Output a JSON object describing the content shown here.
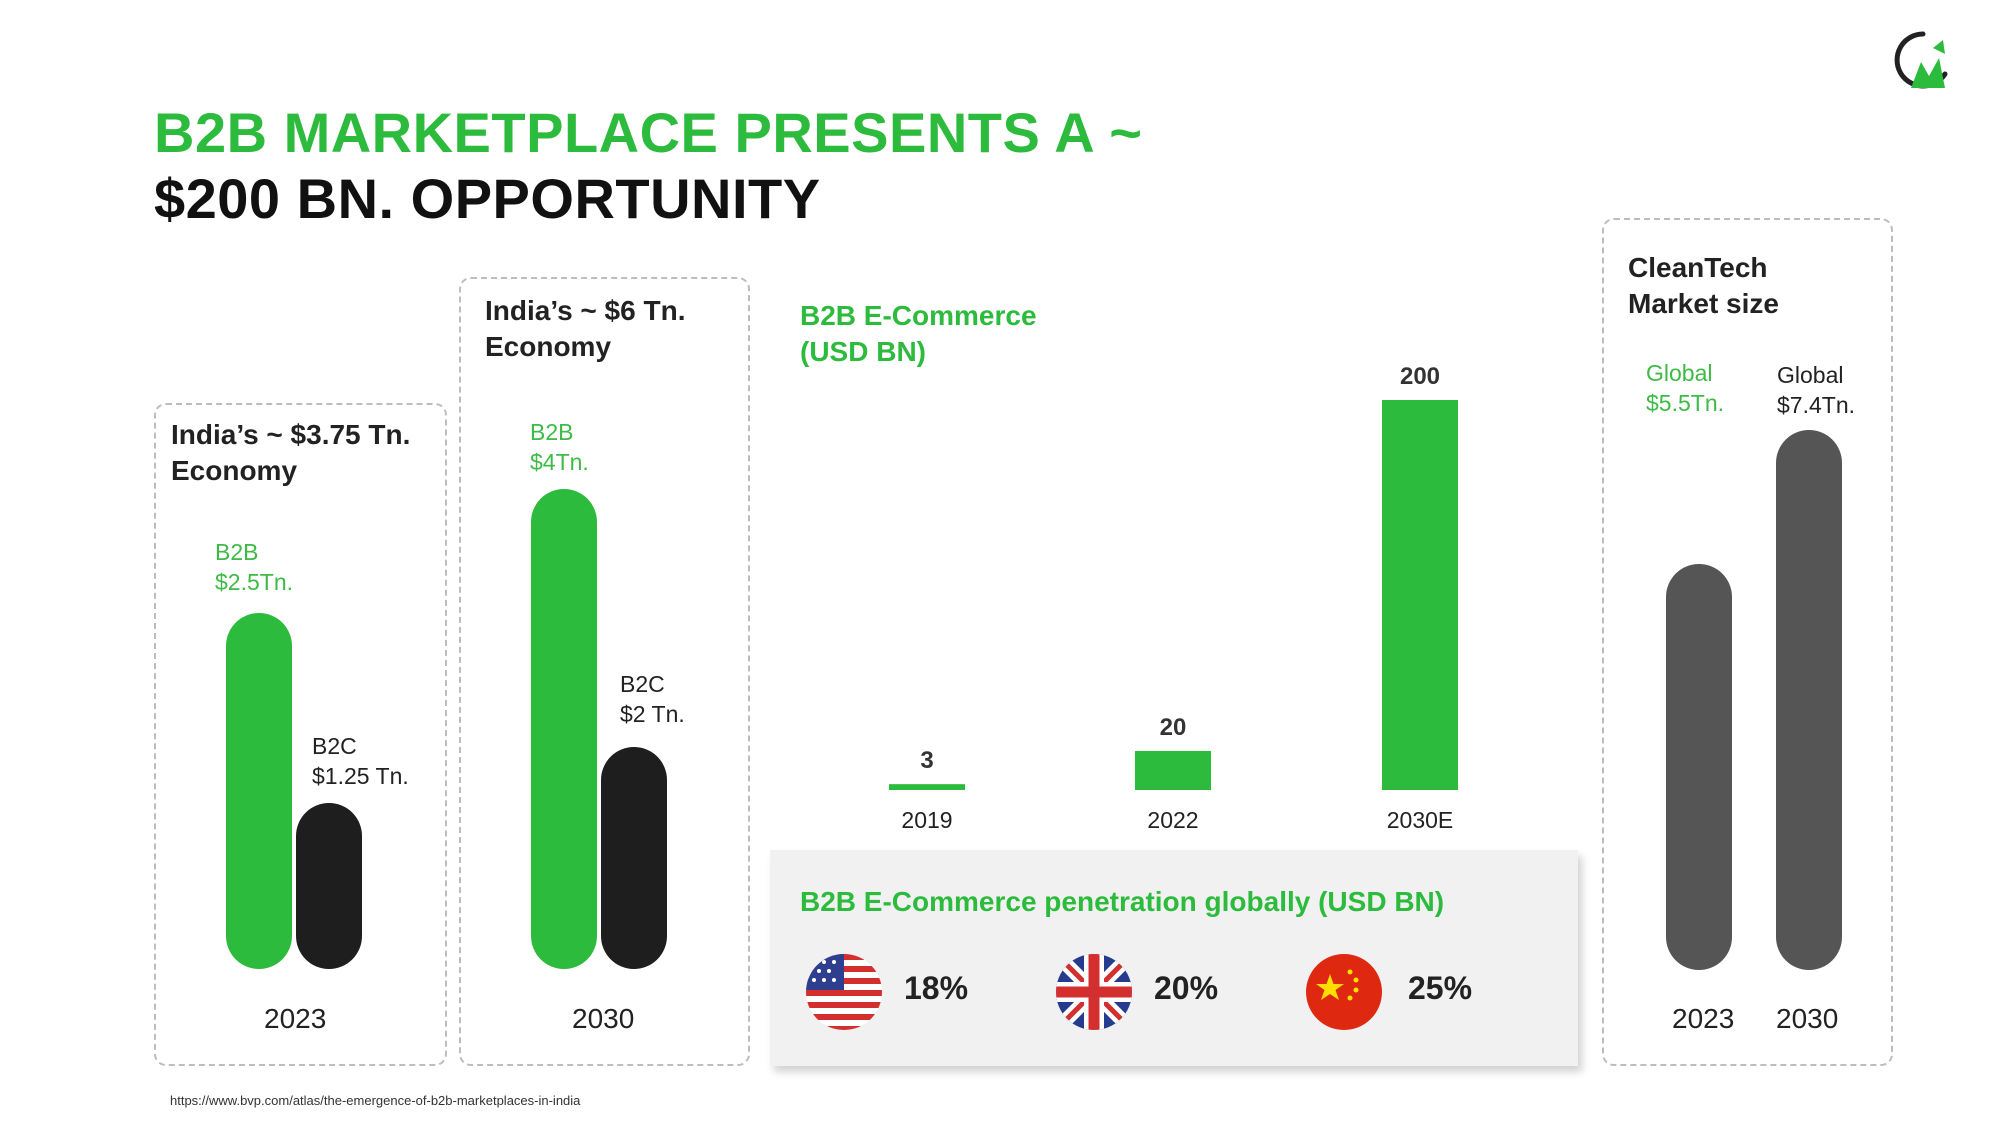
{
  "title": {
    "line1": "B2B MARKETPLACE PRESENTS A ~",
    "line2": "$200 BN. OPPORTUNITY"
  },
  "colors": {
    "brand_green": "#2dbb3d",
    "b2c_black": "#1e1e1e",
    "cleantech_gray": "#555555",
    "panel_bg": "#f1f1f1"
  },
  "india_2023": {
    "title": "India’s ~ $3.75 Tn. Economy",
    "b2b_label": "B2B",
    "b2b_value": "$2.5Tn.",
    "b2c_label": "B2C",
    "b2c_value": "$1.25 Tn.",
    "year": "2023"
  },
  "india_2030": {
    "title": "India’s ~ $6 Tn. Economy",
    "b2b_label": "B2B",
    "b2b_value": "$4Tn.",
    "b2c_label": "B2C",
    "b2c_value": "$2 Tn.",
    "year": "2030"
  },
  "chart_data": [
    {
      "type": "bar",
      "title": "India’s ~ $3.75 Tn. Economy",
      "categories": [
        "B2B",
        "B2C"
      ],
      "values": [
        2.5,
        1.25
      ],
      "unit": "Tn."
    },
    {
      "type": "bar",
      "title": "India’s ~ $6 Tn. Economy",
      "categories": [
        "B2B",
        "B2C"
      ],
      "values": [
        4,
        2
      ],
      "unit": "Tn."
    },
    {
      "type": "bar",
      "title": "B2B E-Commerce (USD BN)",
      "categories": [
        "2019",
        "2022",
        "2030E"
      ],
      "values": [
        3,
        20,
        200
      ],
      "ylim": [
        0,
        200
      ]
    },
    {
      "type": "bar",
      "title": "CleanTech Market size",
      "categories": [
        "2023",
        "2030"
      ],
      "values": [
        5.5,
        7.4
      ],
      "unit": "Tn."
    }
  ],
  "ecommerce": {
    "title": "B2B E-Commerce (USD BN)",
    "bars": [
      {
        "year": "2019",
        "value": 3,
        "label": "3"
      },
      {
        "year": "2022",
        "value": 20,
        "label": "20"
      },
      {
        "year": "2030E",
        "value": 200,
        "label": "200"
      }
    ]
  },
  "penetration": {
    "title": "B2B E-Commerce penetration globally (USD BN)",
    "items": [
      {
        "country_icon": "usa-flag-icon",
        "value": "18%"
      },
      {
        "country_icon": "uk-flag-icon",
        "value": "20%"
      },
      {
        "country_icon": "china-flag-icon",
        "value": "25%"
      }
    ]
  },
  "cleantech": {
    "title": "CleanTech Market size",
    "bar1_label": "Global",
    "bar1_value": "$5.5Tn.",
    "bar2_label": "Global",
    "bar2_value": "$7.4Tn.",
    "year1": "2023",
    "year2": "2030"
  },
  "source": "https://www.bvp.com/atlas/the-emergence-of-b2b-marketplaces-in-india"
}
